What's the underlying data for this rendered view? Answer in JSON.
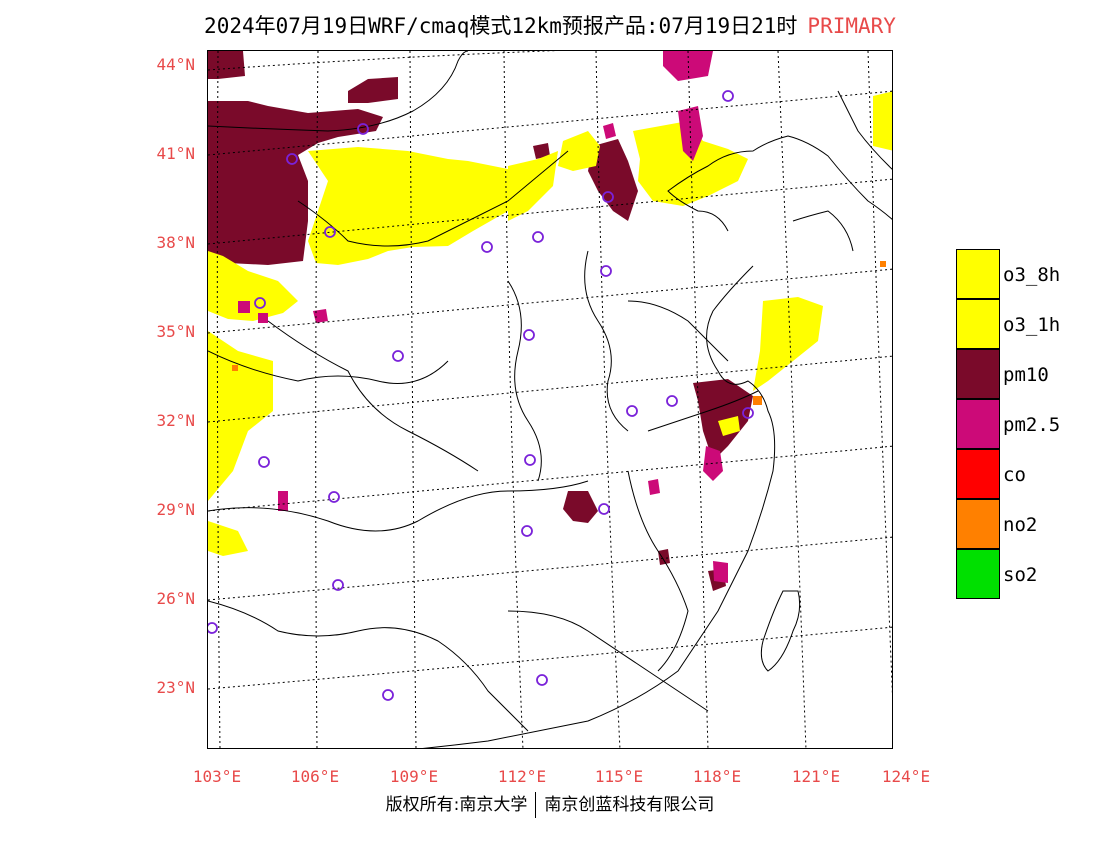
{
  "header": {
    "title": "2024年07月19日WRF/cmaq模式12km预报产品:07月19日21时",
    "tag": "PRIMARY"
  },
  "map": {
    "lat_labels": [
      "44°N",
      "41°N",
      "38°N",
      "35°N",
      "32°N",
      "29°N",
      "26°N",
      "23°N"
    ],
    "lon_labels": [
      "103°E",
      "106°E",
      "109°E",
      "112°E",
      "115°E",
      "118°E",
      "121°E",
      "124°E"
    ]
  },
  "legend": {
    "items": [
      {
        "label": "o3_8h",
        "color": "#ffff00"
      },
      {
        "label": "o3_1h",
        "color": "#ffff00"
      },
      {
        "label": "pm10",
        "color": "#7a0a2a"
      },
      {
        "label": "pm2.5",
        "color": "#cc0a78"
      },
      {
        "label": "co",
        "color": "#ff0000"
      },
      {
        "label": "no2",
        "color": "#ff8000"
      },
      {
        "label": "so2",
        "color": "#00e000"
      }
    ]
  },
  "footer": {
    "left": "版权所有:南京大学",
    "right": "南京创蓝科技有限公司"
  },
  "colors": {
    "axis_label": "#e84a4a",
    "station_marker": "#7a22d9",
    "map_line": "#000000"
  }
}
